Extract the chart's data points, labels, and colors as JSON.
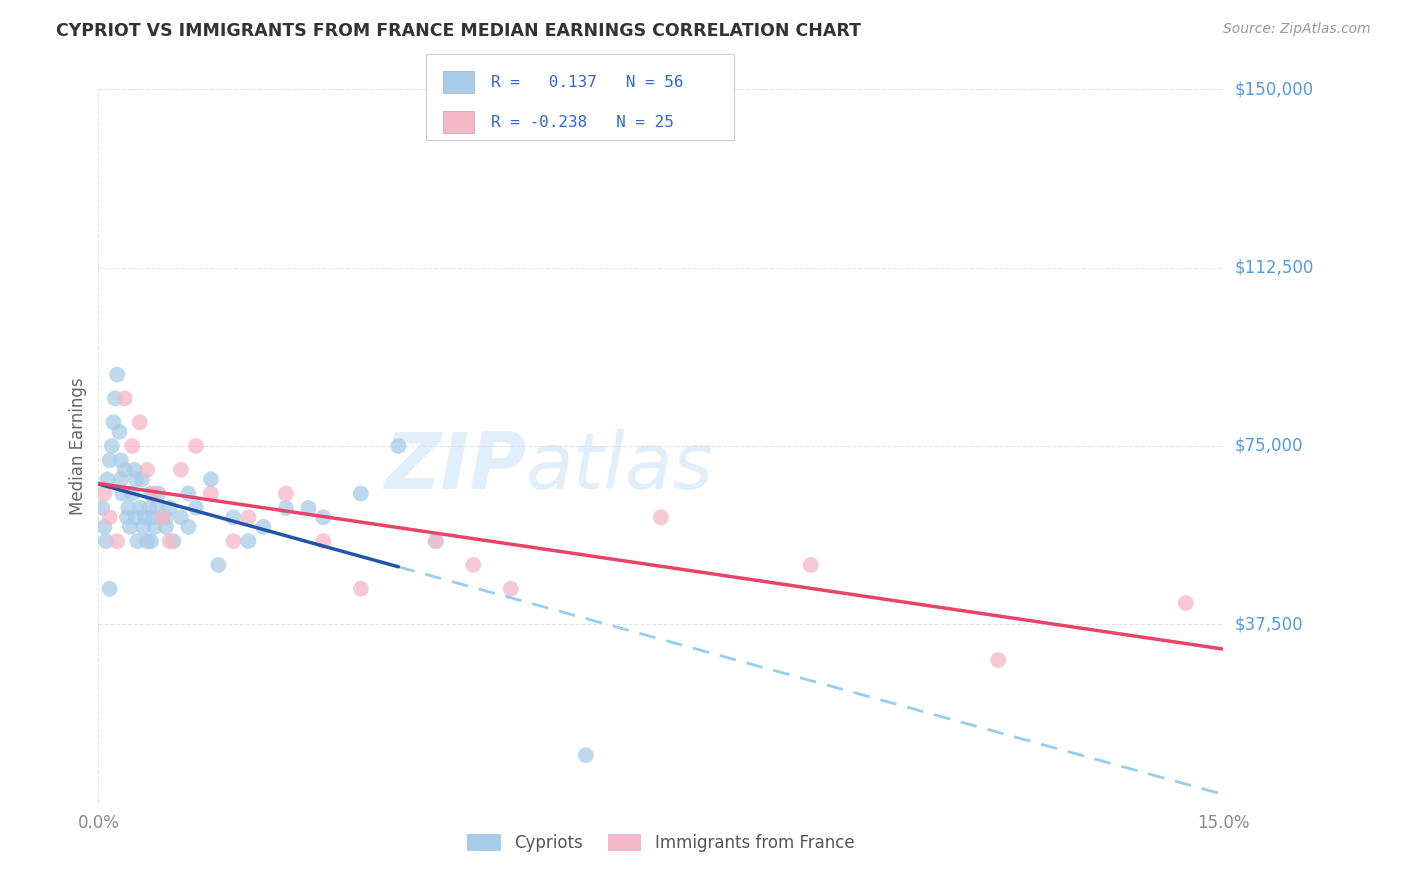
{
  "title": "CYPRIOT VS IMMIGRANTS FROM FRANCE MEDIAN EARNINGS CORRELATION CHART",
  "source": "Source: ZipAtlas.com",
  "ylabel": "Median Earnings",
  "xmin": 0.0,
  "xmax": 15.0,
  "ymin": 0,
  "ymax": 150000,
  "ytick_vals": [
    37500,
    75000,
    112500,
    150000
  ],
  "ytick_labels": [
    "$37,500",
    "$75,000",
    "$112,500",
    "$150,000"
  ],
  "blue_color": "#a8cce8",
  "pink_color": "#f5b8c8",
  "trend_blue_solid": "#2255aa",
  "trend_blue_dash": "#99ccee",
  "trend_pink": "#e8446a",
  "watermark_color": "#cce5f5",
  "legend_text_color": "#3366cc",
  "title_color": "#333333",
  "source_color": "#999999",
  "ytick_color": "#5599dd",
  "grid_color": "#dddddd",
  "cypriot_x": [
    0.05,
    0.08,
    0.1,
    0.12,
    0.15,
    0.18,
    0.2,
    0.22,
    0.25,
    0.28,
    0.3,
    0.32,
    0.35,
    0.38,
    0.4,
    0.42,
    0.45,
    0.48,
    0.5,
    0.52,
    0.55,
    0.58,
    0.6,
    0.62,
    0.65,
    0.68,
    0.7,
    0.72,
    0.75,
    0.78,
    0.8,
    0.85,
    0.9,
    0.95,
    1.0,
    1.1,
    1.2,
    1.3,
    1.5,
    1.8,
    2.0,
    2.2,
    2.5,
    3.0,
    3.5,
    4.0,
    0.3,
    0.5,
    0.7,
    0.9,
    1.2,
    1.6,
    2.8,
    4.5,
    0.15,
    6.5
  ],
  "cypriot_y": [
    62000,
    58000,
    55000,
    68000,
    72000,
    75000,
    80000,
    85000,
    90000,
    78000,
    68000,
    65000,
    70000,
    60000,
    62000,
    58000,
    65000,
    70000,
    60000,
    55000,
    62000,
    68000,
    58000,
    60000,
    55000,
    62000,
    65000,
    60000,
    58000,
    62000,
    65000,
    60000,
    58000,
    62000,
    55000,
    60000,
    65000,
    62000,
    68000,
    60000,
    55000,
    58000,
    62000,
    60000,
    65000,
    75000,
    72000,
    68000,
    55000,
    60000,
    58000,
    50000,
    62000,
    55000,
    45000,
    10000
  ],
  "france_x": [
    0.08,
    0.15,
    0.25,
    0.35,
    0.45,
    0.55,
    0.65,
    0.75,
    0.85,
    0.95,
    1.1,
    1.3,
    1.5,
    1.8,
    2.0,
    2.5,
    3.0,
    3.5,
    4.5,
    5.0,
    5.5,
    7.5,
    9.5,
    12.0,
    14.5
  ],
  "france_y": [
    65000,
    60000,
    55000,
    85000,
    75000,
    80000,
    70000,
    65000,
    60000,
    55000,
    70000,
    75000,
    65000,
    55000,
    60000,
    65000,
    55000,
    45000,
    55000,
    50000,
    45000,
    60000,
    50000,
    30000,
    42000
  ]
}
